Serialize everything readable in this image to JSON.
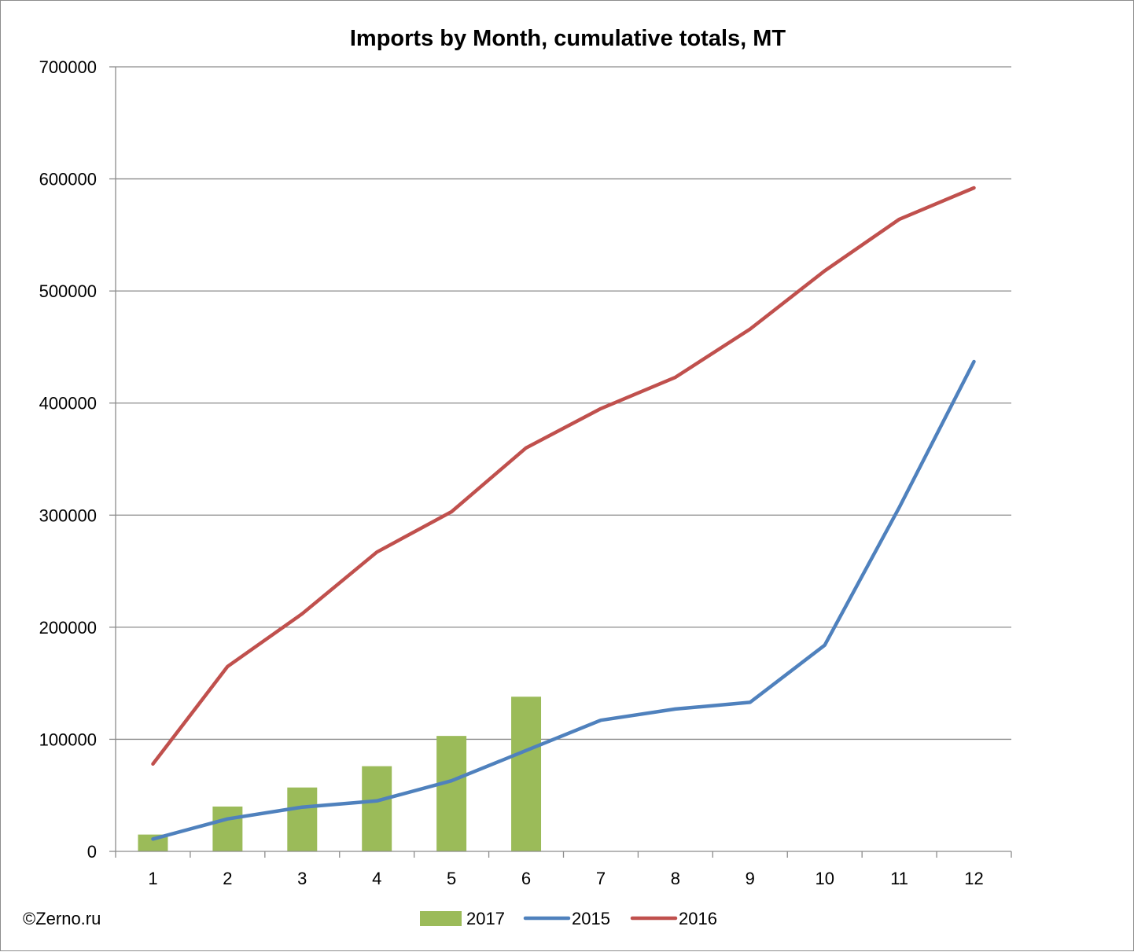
{
  "credit": "©Zerno.ru",
  "chart_data": {
    "type": "bar+line",
    "title": "Imports by Month, cumulative totals, MT",
    "xlabel": "",
    "ylabel": "",
    "categories": [
      "1",
      "2",
      "3",
      "4",
      "5",
      "6",
      "7",
      "8",
      "9",
      "10",
      "11",
      "12"
    ],
    "ylim": [
      0,
      700000
    ],
    "yticks": [
      0,
      100000,
      200000,
      300000,
      400000,
      500000,
      600000,
      700000
    ],
    "ytick_labels": [
      "0",
      "100000",
      "200000",
      "300000",
      "400000",
      "500000",
      "600000",
      "700000"
    ],
    "grid": true,
    "legend_position": "bottom",
    "series": [
      {
        "name": "2017",
        "kind": "bar",
        "color": "#9bbb59",
        "values": [
          15000,
          40000,
          57000,
          76000,
          103000,
          138000,
          null,
          null,
          null,
          null,
          null,
          null
        ]
      },
      {
        "name": "2015",
        "kind": "line",
        "color": "#4f81bd",
        "values": [
          11000,
          29000,
          39500,
          45000,
          63000,
          90000,
          117000,
          127000,
          133000,
          184000,
          307000,
          437000
        ]
      },
      {
        "name": "2016",
        "kind": "line",
        "color": "#c0504d",
        "values": [
          78000,
          165000,
          212000,
          267000,
          303000,
          360000,
          395000,
          423000,
          466000,
          518000,
          564000,
          592000
        ]
      }
    ]
  }
}
